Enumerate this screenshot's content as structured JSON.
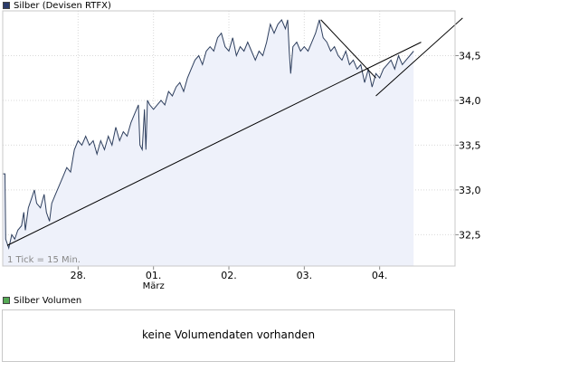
{
  "colors": {
    "price_legend": "#2a3a6a",
    "volume_legend": "#55aa55",
    "line": "#2e3f5e",
    "fill": "#eef1fa",
    "grid": "#d9d9d9",
    "trend": "#000000"
  },
  "volume_panel": {
    "legend": "Silber Volumen",
    "message": "keine Volumendaten vorhanden"
  },
  "chart_data": {
    "type": "area",
    "title": "Silber (Devisen RTFX)",
    "note": "1 Tick = 15 Min.",
    "ylim": [
      32.15,
      35.0
    ],
    "y_ticks": [
      32.5,
      33.0,
      33.5,
      34.0,
      34.5
    ],
    "y_tick_labels": [
      "32,5",
      "33,0",
      "33,5",
      "34,0",
      "34,5"
    ],
    "x_ticks": [
      {
        "label": "28.",
        "sublabel": "",
        "x": 1.0
      },
      {
        "label": "01.",
        "sublabel": "März",
        "x": 2.0
      },
      {
        "label": "02.",
        "sublabel": "",
        "x": 3.0
      },
      {
        "label": "03.",
        "sublabel": "",
        "x": 4.0
      },
      {
        "label": "04.",
        "sublabel": "",
        "x": 5.0
      }
    ],
    "xlim": [
      0.0,
      6.0
    ],
    "grid": true,
    "series": [
      {
        "values": [
          [
            0.0,
            33.18
          ],
          [
            0.03,
            33.18
          ],
          [
            0.04,
            32.45
          ],
          [
            0.08,
            32.35
          ],
          [
            0.12,
            32.5
          ],
          [
            0.16,
            32.45
          ],
          [
            0.2,
            32.55
          ],
          [
            0.25,
            32.6
          ],
          [
            0.28,
            32.75
          ],
          [
            0.3,
            32.55
          ],
          [
            0.34,
            32.8
          ],
          [
            0.38,
            32.9
          ],
          [
            0.42,
            33.0
          ],
          [
            0.45,
            32.85
          ],
          [
            0.5,
            32.8
          ],
          [
            0.55,
            32.95
          ],
          [
            0.58,
            32.75
          ],
          [
            0.62,
            32.65
          ],
          [
            0.65,
            32.85
          ],
          [
            0.7,
            32.95
          ],
          [
            0.75,
            33.05
          ],
          [
            0.8,
            33.15
          ],
          [
            0.85,
            33.25
          ],
          [
            0.9,
            33.2
          ],
          [
            0.95,
            33.45
          ],
          [
            1.0,
            33.55
          ],
          [
            1.05,
            33.5
          ],
          [
            1.1,
            33.6
          ],
          [
            1.15,
            33.5
          ],
          [
            1.2,
            33.55
          ],
          [
            1.25,
            33.4
          ],
          [
            1.3,
            33.55
          ],
          [
            1.35,
            33.45
          ],
          [
            1.4,
            33.6
          ],
          [
            1.45,
            33.5
          ],
          [
            1.5,
            33.7
          ],
          [
            1.55,
            33.55
          ],
          [
            1.6,
            33.65
          ],
          [
            1.65,
            33.6
          ],
          [
            1.7,
            33.75
          ],
          [
            1.75,
            33.85
          ],
          [
            1.8,
            33.95
          ],
          [
            1.82,
            33.5
          ],
          [
            1.85,
            33.45
          ],
          [
            1.88,
            33.9
          ],
          [
            1.9,
            33.45
          ],
          [
            1.92,
            34.0
          ],
          [
            1.95,
            33.95
          ],
          [
            2.0,
            33.9
          ],
          [
            2.05,
            33.95
          ],
          [
            2.1,
            34.0
          ],
          [
            2.15,
            33.95
          ],
          [
            2.2,
            34.1
          ],
          [
            2.25,
            34.05
          ],
          [
            2.3,
            34.15
          ],
          [
            2.35,
            34.2
          ],
          [
            2.4,
            34.1
          ],
          [
            2.45,
            34.25
          ],
          [
            2.5,
            34.35
          ],
          [
            2.55,
            34.45
          ],
          [
            2.6,
            34.5
          ],
          [
            2.65,
            34.4
          ],
          [
            2.7,
            34.55
          ],
          [
            2.75,
            34.6
          ],
          [
            2.8,
            34.55
          ],
          [
            2.85,
            34.7
          ],
          [
            2.9,
            34.75
          ],
          [
            2.95,
            34.6
          ],
          [
            3.0,
            34.55
          ],
          [
            3.05,
            34.7
          ],
          [
            3.1,
            34.5
          ],
          [
            3.15,
            34.6
          ],
          [
            3.2,
            34.55
          ],
          [
            3.25,
            34.65
          ],
          [
            3.3,
            34.55
          ],
          [
            3.35,
            34.45
          ],
          [
            3.4,
            34.55
          ],
          [
            3.45,
            34.5
          ],
          [
            3.5,
            34.65
          ],
          [
            3.55,
            34.85
          ],
          [
            3.6,
            34.75
          ],
          [
            3.65,
            34.85
          ],
          [
            3.7,
            34.9
          ],
          [
            3.75,
            34.8
          ],
          [
            3.78,
            34.9
          ],
          [
            3.8,
            34.55
          ],
          [
            3.82,
            34.3
          ],
          [
            3.85,
            34.6
          ],
          [
            3.9,
            34.65
          ],
          [
            3.95,
            34.55
          ],
          [
            4.0,
            34.6
          ],
          [
            4.05,
            34.55
          ],
          [
            4.1,
            34.65
          ],
          [
            4.15,
            34.75
          ],
          [
            4.2,
            34.9
          ],
          [
            4.25,
            34.7
          ],
          [
            4.3,
            34.65
          ],
          [
            4.35,
            34.55
          ],
          [
            4.4,
            34.6
          ],
          [
            4.45,
            34.5
          ],
          [
            4.5,
            34.45
          ],
          [
            4.55,
            34.55
          ],
          [
            4.6,
            34.4
          ],
          [
            4.65,
            34.45
          ],
          [
            4.7,
            34.35
          ],
          [
            4.75,
            34.4
          ],
          [
            4.8,
            34.2
          ],
          [
            4.85,
            34.35
          ],
          [
            4.9,
            34.15
          ],
          [
            4.95,
            34.3
          ],
          [
            5.0,
            34.25
          ],
          [
            5.05,
            34.35
          ],
          [
            5.1,
            34.4
          ],
          [
            5.15,
            34.45
          ],
          [
            5.2,
            34.35
          ],
          [
            5.25,
            34.5
          ],
          [
            5.3,
            34.4
          ],
          [
            5.35,
            34.45
          ],
          [
            5.4,
            34.5
          ],
          [
            5.45,
            34.55
          ]
        ]
      }
    ],
    "trend_lines": [
      [
        [
          0.06,
          32.38
        ],
        [
          5.55,
          34.65
        ]
      ],
      [
        [
          4.22,
          34.9
        ],
        [
          4.95,
          34.25
        ]
      ],
      [
        [
          4.95,
          34.05
        ],
        [
          6.1,
          34.92
        ]
      ]
    ]
  }
}
